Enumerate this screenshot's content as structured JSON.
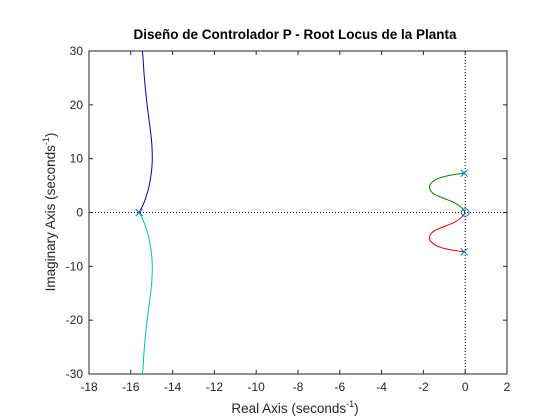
{
  "chart_data": {
    "type": "line",
    "title": "Diseño de Controlador P - Root Locus de la Planta",
    "xlabel": {
      "text": "Real Axis (seconds",
      "sup": "-1",
      "close": ")"
    },
    "ylabel": {
      "text": "Imaginary Axis (seconds",
      "sup": "-1",
      "close": ")"
    },
    "xlim": [
      -18,
      2
    ],
    "ylim": [
      -30,
      30
    ],
    "xticks": [
      -18,
      -16,
      -14,
      -12,
      -10,
      -8,
      -6,
      -4,
      -2,
      0,
      2
    ],
    "yticks": [
      -30,
      -20,
      -10,
      0,
      10,
      20,
      30
    ],
    "xtick_labels": [
      "-18",
      "-16",
      "-14",
      "-12",
      "-10",
      "-8",
      "-6",
      "-4",
      "-2",
      "0",
      "2"
    ],
    "ytick_labels": [
      "-30",
      "-20",
      "-10",
      "0",
      "10",
      "20",
      "30"
    ],
    "grid": false,
    "reference_lines": {
      "x": 0,
      "y": 0,
      "style": "dotted"
    },
    "poles": [
      {
        "x": -15.6,
        "y": 0
      },
      {
        "x": -0.05,
        "y": 7.3
      },
      {
        "x": -0.05,
        "y": -7.3
      }
    ],
    "zeros": [
      {
        "x": 0,
        "y": 0
      }
    ],
    "series": [
      {
        "color": "#0000bf",
        "points": [
          [
            -15.6,
            0
          ],
          [
            -15.35,
            2
          ],
          [
            -15.12,
            5
          ],
          [
            -14.98,
            9
          ],
          [
            -15.0,
            13
          ],
          [
            -15.12,
            17
          ],
          [
            -15.25,
            21
          ],
          [
            -15.35,
            25
          ],
          [
            -15.42,
            29
          ],
          [
            -15.45,
            30
          ]
        ]
      },
      {
        "color": "#00bfbf",
        "points": [
          [
            -15.6,
            0
          ],
          [
            -15.35,
            -2
          ],
          [
            -15.12,
            -5
          ],
          [
            -14.98,
            -9
          ],
          [
            -15.0,
            -13
          ],
          [
            -15.12,
            -17
          ],
          [
            -15.25,
            -21
          ],
          [
            -15.35,
            -25
          ],
          [
            -15.42,
            -29
          ],
          [
            -15.45,
            -30
          ]
        ]
      },
      {
        "color": "#008000",
        "points": [
          [
            -0.05,
            7.3
          ],
          [
            -0.6,
            7.0
          ],
          [
            -1.3,
            6.3
          ],
          [
            -1.7,
            5.0
          ],
          [
            -1.55,
            3.6
          ],
          [
            -1.0,
            2.6
          ],
          [
            -0.5,
            1.8
          ],
          [
            -0.15,
            0.8
          ],
          [
            0,
            0
          ]
        ]
      },
      {
        "color": "#e00000",
        "points": [
          [
            -0.05,
            -7.3
          ],
          [
            -0.6,
            -7.0
          ],
          [
            -1.3,
            -6.3
          ],
          [
            -1.7,
            -5.0
          ],
          [
            -1.55,
            -3.6
          ],
          [
            -1.0,
            -2.6
          ],
          [
            -0.5,
            -1.8
          ],
          [
            -0.15,
            -0.8
          ],
          [
            0,
            0
          ]
        ]
      }
    ],
    "marker_color": "#0072bd"
  }
}
